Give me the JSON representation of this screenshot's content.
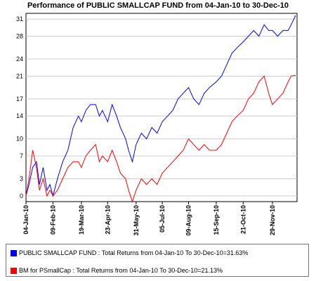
{
  "chart_data": {
    "type": "line",
    "title": "Performance of PUBLIC SMALLCAP FUND from 04-Jan-10 to 30-Dec-10",
    "xlabel": "",
    "ylabel": "",
    "ylim": [
      -1,
      32
    ],
    "yticks": [
      0,
      3,
      7,
      10,
      14,
      17,
      21,
      24,
      28,
      31
    ],
    "grid": "horizontal",
    "legend_position": "bottom",
    "xticks": [
      "04-Jan-10",
      "09-Feb-10",
      "19-Mar-10",
      "23-Apr-10",
      "31-May-10",
      "05-Jul-10",
      "09-Aug-10",
      "15-Sep-10",
      "21-Oct-10",
      "29-Nov-10"
    ],
    "xtick_dates": [
      "2010-01-04",
      "2010-02-09",
      "2010-03-19",
      "2010-04-23",
      "2010-05-31",
      "2010-07-05",
      "2010-08-09",
      "2010-09-15",
      "2010-10-21",
      "2010-11-29"
    ],
    "series": [
      {
        "name": "PUBLIC SMALLCAP FUND : Total Returns from 04-Jan-10 To 30-Dec-10=31.63%",
        "color": "#0000ff",
        "x": [
          "2010-01-04",
          "2010-01-08",
          "2010-01-13",
          "2010-01-18",
          "2010-01-22",
          "2010-01-27",
          "2010-02-01",
          "2010-02-05",
          "2010-02-09",
          "2010-02-15",
          "2010-02-22",
          "2010-03-01",
          "2010-03-08",
          "2010-03-15",
          "2010-03-19",
          "2010-03-25",
          "2010-03-31",
          "2010-04-07",
          "2010-04-12",
          "2010-04-16",
          "2010-04-23",
          "2010-04-29",
          "2010-05-05",
          "2010-05-10",
          "2010-05-17",
          "2010-05-21",
          "2010-05-26",
          "2010-05-31",
          "2010-06-07",
          "2010-06-14",
          "2010-06-21",
          "2010-06-28",
          "2010-07-05",
          "2010-07-12",
          "2010-07-19",
          "2010-07-26",
          "2010-08-02",
          "2010-08-09",
          "2010-08-16",
          "2010-08-23",
          "2010-08-30",
          "2010-09-06",
          "2010-09-15",
          "2010-09-22",
          "2010-09-29",
          "2010-10-06",
          "2010-10-13",
          "2010-10-21",
          "2010-10-28",
          "2010-11-04",
          "2010-11-11",
          "2010-11-18",
          "2010-11-24",
          "2010-11-29",
          "2010-12-06",
          "2010-12-13",
          "2010-12-20",
          "2010-12-24",
          "2010-12-30"
        ],
        "values": [
          0,
          2,
          5,
          6,
          2,
          5,
          1,
          2,
          0,
          3,
          6,
          8,
          12,
          14,
          13,
          15,
          16,
          16,
          14,
          15,
          13,
          16,
          14,
          12,
          10,
          8,
          6,
          9,
          11,
          10,
          12,
          11,
          13,
          14,
          15,
          17,
          18,
          19,
          17,
          16,
          18,
          19,
          20,
          21,
          23,
          25,
          26,
          27,
          28,
          29,
          28,
          30,
          29,
          29,
          28,
          29,
          29,
          30,
          31.63
        ]
      },
      {
        "name": "BM for PSmallCap : Total Returns from 04-Jan-10 To 30-Dec-10=21.13%",
        "color": "#ff0000",
        "x": [
          "2010-01-04",
          "2010-01-08",
          "2010-01-13",
          "2010-01-18",
          "2010-01-22",
          "2010-01-27",
          "2010-02-01",
          "2010-02-05",
          "2010-02-09",
          "2010-02-15",
          "2010-02-22",
          "2010-03-01",
          "2010-03-08",
          "2010-03-15",
          "2010-03-19",
          "2010-03-25",
          "2010-03-31",
          "2010-04-07",
          "2010-04-12",
          "2010-04-16",
          "2010-04-23",
          "2010-04-29",
          "2010-05-05",
          "2010-05-10",
          "2010-05-17",
          "2010-05-21",
          "2010-05-26",
          "2010-05-31",
          "2010-06-07",
          "2010-06-14",
          "2010-06-21",
          "2010-06-28",
          "2010-07-05",
          "2010-07-12",
          "2010-07-19",
          "2010-07-26",
          "2010-08-02",
          "2010-08-09",
          "2010-08-16",
          "2010-08-23",
          "2010-08-30",
          "2010-09-06",
          "2010-09-15",
          "2010-09-22",
          "2010-09-29",
          "2010-10-06",
          "2010-10-13",
          "2010-10-21",
          "2010-10-28",
          "2010-11-04",
          "2010-11-11",
          "2010-11-18",
          "2010-11-24",
          "2010-11-29",
          "2010-12-06",
          "2010-12-13",
          "2010-12-20",
          "2010-12-24",
          "2010-12-30"
        ],
        "values": [
          0,
          3,
          8,
          5,
          1,
          3,
          0,
          1,
          0,
          1,
          3,
          5,
          6,
          6,
          5,
          7,
          8,
          9,
          6,
          7,
          6,
          8,
          6,
          4,
          3,
          1,
          -1,
          1,
          3,
          2,
          3,
          2,
          4,
          5,
          6,
          7,
          8,
          10,
          9,
          8,
          9,
          8,
          8,
          9,
          11,
          13,
          14,
          15,
          17,
          18,
          20,
          21,
          18,
          16,
          17,
          18,
          20,
          21,
          21.13
        ]
      }
    ]
  }
}
